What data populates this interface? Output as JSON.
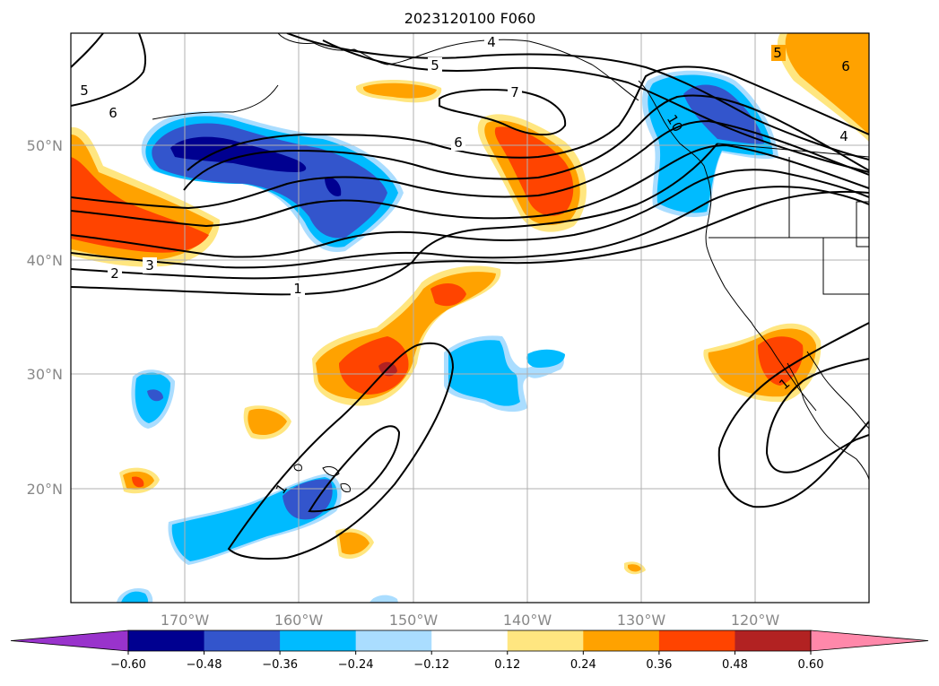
{
  "title": "2023120100 F060",
  "lat_labels": [
    "50°N",
    "40°N",
    "30°N",
    "20°N"
  ],
  "lon_labels": [
    "170°W",
    "160°W",
    "150°W",
    "140°W",
    "130°W",
    "120°W"
  ],
  "colorbar": {
    "ticks": [
      "−0.60",
      "−0.48",
      "−0.36",
      "−0.24",
      "−0.12",
      "0.12",
      "0.24",
      "0.36",
      "0.48",
      "0.60"
    ],
    "colors": [
      "#9933cc",
      "#000090",
      "#3355cc",
      "#00bbff",
      "#aaddff",
      "#ffffff",
      "#ffe680",
      "#ffa200",
      "#ff4400",
      "#b22222",
      "#ff88aa"
    ]
  },
  "contour_labels": [
    "4",
    "5",
    "5",
    "7",
    "6",
    "6",
    "5",
    "6",
    "4",
    "3",
    "2",
    "1",
    "1",
    "1",
    "10"
  ]
}
